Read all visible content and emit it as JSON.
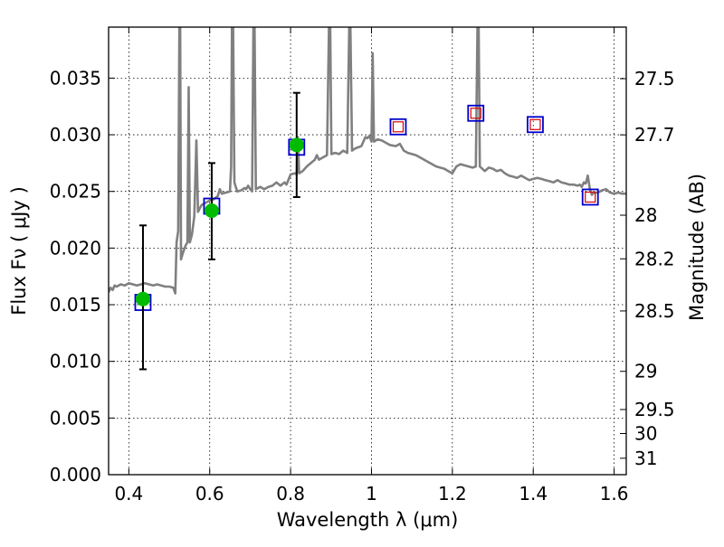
{
  "chart_data": {
    "type": "scatter",
    "xlabel": "Wavelength  λ (μm)",
    "ylabel": "Flux  Fν  ( μJy )",
    "y2label": "Magnitude (AB)",
    "xlim": [
      0.35,
      1.63
    ],
    "ylim": [
      0.0,
      0.0395
    ],
    "grid": true,
    "x_ticks": [
      {
        "value": 0.4,
        "label": "0.4"
      },
      {
        "value": 0.6,
        "label": "0.6"
      },
      {
        "value": 0.8,
        "label": "0.8"
      },
      {
        "value": 1.0,
        "label": "1"
      },
      {
        "value": 1.2,
        "label": "1.2"
      },
      {
        "value": 1.4,
        "label": "1.4"
      },
      {
        "value": 1.6,
        "label": "1.6"
      }
    ],
    "y_ticks": [
      {
        "value": 0.0,
        "label": "0.000"
      },
      {
        "value": 0.005,
        "label": "0.005"
      },
      {
        "value": 0.01,
        "label": "0.010"
      },
      {
        "value": 0.015,
        "label": "0.015"
      },
      {
        "value": 0.02,
        "label": "0.020"
      },
      {
        "value": 0.025,
        "label": "0.025"
      },
      {
        "value": 0.03,
        "label": "0.030"
      },
      {
        "value": 0.035,
        "label": "0.035"
      }
    ],
    "y2_ticks": [
      {
        "label": "27.5",
        "flux": 0.03495
      },
      {
        "label": "27.7",
        "flux": 0.02999
      },
      {
        "label": "28",
        "flux": 0.0229
      },
      {
        "label": "28.2",
        "flux": 0.01905
      },
      {
        "label": "28.5",
        "flux": 0.01445
      },
      {
        "label": "29",
        "flux": 0.00912
      },
      {
        "label": "29.5",
        "flux": 0.00575
      },
      {
        "label": "30",
        "flux": 0.00363
      },
      {
        "label": "31",
        "flux": 0.00145
      }
    ],
    "model_sed": {
      "color": "#808080",
      "points": [
        [
          0.35,
          0.0161
        ],
        [
          0.355,
          0.0165
        ],
        [
          0.36,
          0.0163
        ],
        [
          0.365,
          0.0167
        ],
        [
          0.37,
          0.0166
        ],
        [
          0.38,
          0.0168
        ],
        [
          0.39,
          0.0167
        ],
        [
          0.4,
          0.0169
        ],
        [
          0.41,
          0.0168
        ],
        [
          0.42,
          0.0167
        ],
        [
          0.43,
          0.0168
        ],
        [
          0.44,
          0.0169
        ],
        [
          0.45,
          0.0168
        ],
        [
          0.46,
          0.0167
        ],
        [
          0.47,
          0.0168
        ],
        [
          0.48,
          0.0167
        ],
        [
          0.49,
          0.0166
        ],
        [
          0.5,
          0.0166
        ],
        [
          0.51,
          0.0165
        ],
        [
          0.515,
          0.016
        ],
        [
          0.518,
          0.0205
        ],
        [
          0.522,
          0.0215
        ],
        [
          0.525,
          0.0395
        ],
        [
          0.527,
          0.0395
        ],
        [
          0.529,
          0.019
        ],
        [
          0.533,
          0.0195
        ],
        [
          0.54,
          0.0202
        ],
        [
          0.545,
          0.0205
        ],
        [
          0.548,
          0.0342
        ],
        [
          0.551,
          0.0205
        ],
        [
          0.556,
          0.0212
        ],
        [
          0.562,
          0.0228
        ],
        [
          0.567,
          0.0295
        ],
        [
          0.571,
          0.0232
        ],
        [
          0.58,
          0.0238
        ],
        [
          0.59,
          0.024
        ],
        [
          0.6,
          0.0242
        ],
        [
          0.61,
          0.0243
        ],
        [
          0.62,
          0.0246
        ],
        [
          0.625,
          0.0252
        ],
        [
          0.63,
          0.0248
        ],
        [
          0.64,
          0.0249
        ],
        [
          0.65,
          0.025
        ],
        [
          0.653,
          0.0272
        ],
        [
          0.655,
          0.0395
        ],
        [
          0.658,
          0.0395
        ],
        [
          0.661,
          0.0258
        ],
        [
          0.668,
          0.025
        ],
        [
          0.678,
          0.0251
        ],
        [
          0.686,
          0.0253
        ],
        [
          0.69,
          0.0252
        ],
        [
          0.695,
          0.0255
        ],
        [
          0.7,
          0.0252
        ],
        [
          0.705,
          0.025
        ],
        [
          0.708,
          0.0395
        ],
        [
          0.711,
          0.0395
        ],
        [
          0.714,
          0.0252
        ],
        [
          0.725,
          0.0254
        ],
        [
          0.735,
          0.0252
        ],
        [
          0.745,
          0.0254
        ],
        [
          0.755,
          0.0255
        ],
        [
          0.765,
          0.0258
        ],
        [
          0.775,
          0.0255
        ],
        [
          0.785,
          0.0258
        ],
        [
          0.79,
          0.0256
        ],
        [
          0.8,
          0.0265
        ],
        [
          0.81,
          0.0266
        ],
        [
          0.815,
          0.0265
        ],
        [
          0.818,
          0.0298
        ],
        [
          0.821,
          0.0266
        ],
        [
          0.83,
          0.0268
        ],
        [
          0.84,
          0.0272
        ],
        [
          0.85,
          0.0275
        ],
        [
          0.86,
          0.0278
        ],
        [
          0.865,
          0.0282
        ],
        [
          0.87,
          0.0278
        ],
        [
          0.88,
          0.028
        ],
        [
          0.89,
          0.0282
        ],
        [
          0.895,
          0.0395
        ],
        [
          0.898,
          0.0395
        ],
        [
          0.901,
          0.0283
        ],
        [
          0.91,
          0.0284
        ],
        [
          0.92,
          0.0283
        ],
        [
          0.93,
          0.0286
        ],
        [
          0.94,
          0.0284
        ],
        [
          0.945,
          0.0395
        ],
        [
          0.948,
          0.0395
        ],
        [
          0.952,
          0.0286
        ],
        [
          0.96,
          0.0288
        ],
        [
          0.975,
          0.029
        ],
        [
          0.98,
          0.0294
        ],
        [
          0.985,
          0.0298
        ],
        [
          0.99,
          0.0297
        ],
        [
          0.995,
          0.0299
        ],
        [
          1.0,
          0.0294
        ],
        [
          1.003,
          0.0372
        ],
        [
          1.006,
          0.0294
        ],
        [
          1.015,
          0.0296
        ],
        [
          1.025,
          0.0295
        ],
        [
          1.035,
          0.0293
        ],
        [
          1.045,
          0.0291
        ],
        [
          1.06,
          0.029
        ],
        [
          1.07,
          0.0292
        ],
        [
          1.075,
          0.0289
        ],
        [
          1.08,
          0.0286
        ],
        [
          1.09,
          0.0284
        ],
        [
          1.1,
          0.0283
        ],
        [
          1.11,
          0.0282
        ],
        [
          1.12,
          0.028
        ],
        [
          1.13,
          0.0278
        ],
        [
          1.14,
          0.0276
        ],
        [
          1.15,
          0.0274
        ],
        [
          1.16,
          0.0272
        ],
        [
          1.17,
          0.0271
        ],
        [
          1.18,
          0.027
        ],
        [
          1.19,
          0.0268
        ],
        [
          1.2,
          0.0266
        ],
        [
          1.21,
          0.0272
        ],
        [
          1.22,
          0.0274
        ],
        [
          1.23,
          0.0273
        ],
        [
          1.24,
          0.0272
        ],
        [
          1.25,
          0.0271
        ],
        [
          1.258,
          0.0272
        ],
        [
          1.262,
          0.0395
        ],
        [
          1.265,
          0.0395
        ],
        [
          1.268,
          0.0272
        ],
        [
          1.28,
          0.0268
        ],
        [
          1.29,
          0.0271
        ],
        [
          1.3,
          0.027
        ],
        [
          1.31,
          0.0268
        ],
        [
          1.32,
          0.0269
        ],
        [
          1.33,
          0.0266
        ],
        [
          1.34,
          0.0264
        ],
        [
          1.35,
          0.0263
        ],
        [
          1.36,
          0.0262
        ],
        [
          1.37,
          0.0264
        ],
        [
          1.38,
          0.0262
        ],
        [
          1.39,
          0.026
        ],
        [
          1.4,
          0.0261
        ],
        [
          1.41,
          0.0262
        ],
        [
          1.42,
          0.0261
        ],
        [
          1.43,
          0.026
        ],
        [
          1.44,
          0.0259
        ],
        [
          1.45,
          0.0258
        ],
        [
          1.46,
          0.026
        ],
        [
          1.47,
          0.0258
        ],
        [
          1.48,
          0.0257
        ],
        [
          1.49,
          0.0256
        ],
        [
          1.5,
          0.0256
        ],
        [
          1.51,
          0.0255
        ],
        [
          1.515,
          0.0256
        ],
        [
          1.52,
          0.0254
        ],
        [
          1.525,
          0.0258
        ],
        [
          1.53,
          0.0257
        ],
        [
          1.535,
          0.0264
        ],
        [
          1.54,
          0.0252
        ],
        [
          1.545,
          0.0247
        ],
        [
          1.55,
          0.0249
        ],
        [
          1.56,
          0.0249
        ],
        [
          1.57,
          0.0251
        ],
        [
          1.58,
          0.0252
        ],
        [
          1.59,
          0.0249
        ],
        [
          1.6,
          0.0248
        ],
        [
          1.61,
          0.0249
        ],
        [
          1.62,
          0.0248
        ],
        [
          1.63,
          0.0248
        ]
      ]
    },
    "photometry_squares": {
      "color": "#0000cc",
      "points": [
        {
          "x": 0.435,
          "y": 0.0152
        },
        {
          "x": 0.605,
          "y": 0.0237
        },
        {
          "x": 0.815,
          "y": 0.0289
        },
        {
          "x": 1.066,
          "y": 0.0307
        },
        {
          "x": 1.258,
          "y": 0.0319
        },
        {
          "x": 1.405,
          "y": 0.0309
        },
        {
          "x": 1.541,
          "y": 0.0245
        }
      ]
    },
    "observed_detections": {
      "color": "#00bb00",
      "points": [
        {
          "x": 0.435,
          "y": 0.0155,
          "err_low": 0.0093,
          "err_high": 0.022
        },
        {
          "x": 0.605,
          "y": 0.0233,
          "err_low": 0.019,
          "err_high": 0.0275
        },
        {
          "x": 0.815,
          "y": 0.0291,
          "err_low": 0.0245,
          "err_high": 0.0337
        }
      ]
    },
    "upper_limit_squares": {
      "color": "#dd0000",
      "points": [
        {
          "x": 1.066,
          "y": 0.0307
        },
        {
          "x": 1.258,
          "y": 0.0319
        },
        {
          "x": 1.405,
          "y": 0.0309
        },
        {
          "x": 1.541,
          "y": 0.0245
        }
      ]
    }
  }
}
